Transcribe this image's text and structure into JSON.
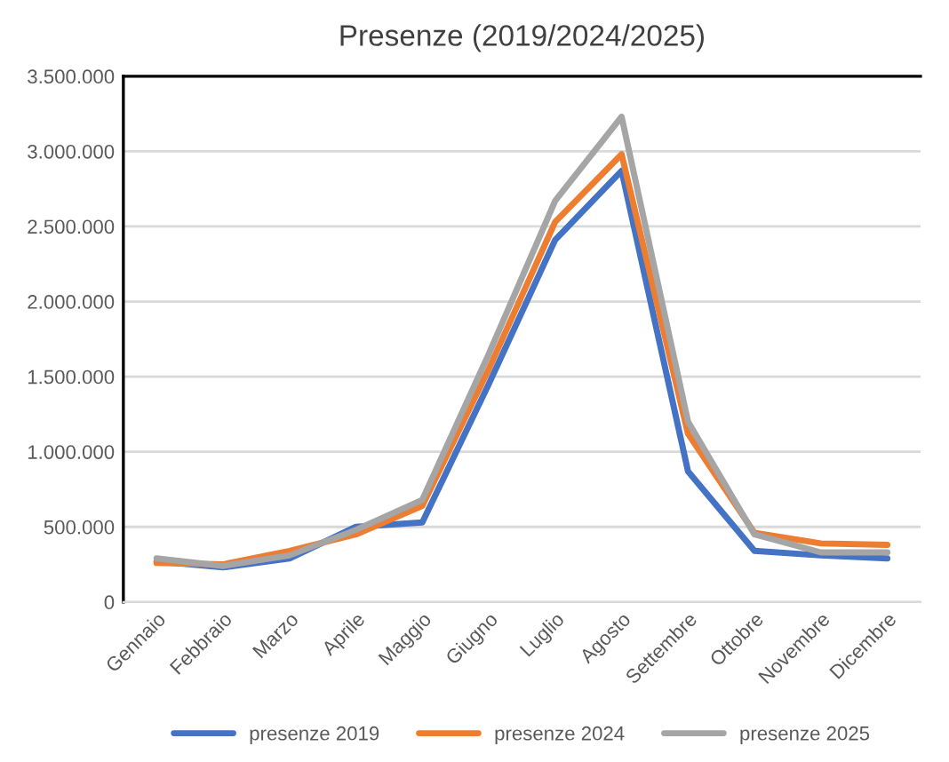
{
  "chart_data": {
    "type": "line",
    "title": "Presenze (2019/2024/2025)",
    "categories": [
      "Gennaio",
      "Febbraio",
      "Marzo",
      "Aprile",
      "Maggio",
      "Giugno",
      "Luglio",
      "Agosto",
      "Settembre",
      "Ottobre",
      "Novembre",
      "Dicembre"
    ],
    "series": [
      {
        "name": "presenze 2019",
        "color": "#4472c4",
        "values": [
          270000,
          230000,
          290000,
          500000,
          530000,
          1450000,
          2410000,
          2870000,
          870000,
          340000,
          310000,
          290000
        ]
      },
      {
        "name": "presenze 2024",
        "color": "#ed7d31",
        "values": [
          260000,
          250000,
          340000,
          450000,
          640000,
          1550000,
          2530000,
          2980000,
          1120000,
          460000,
          390000,
          380000
        ]
      },
      {
        "name": "presenze 2025",
        "color": "#a5a5a5",
        "values": [
          290000,
          240000,
          310000,
          480000,
          680000,
          1650000,
          2670000,
          3230000,
          1200000,
          450000,
          330000,
          330000
        ]
      }
    ],
    "ylim": [
      0,
      3500000
    ],
    "yticks": [
      0,
      {
        "value": 500000,
        "label": "500.000"
      },
      {
        "value": 1000000,
        "label": "1.000.000"
      },
      {
        "value": 1500000,
        "label": "1.500.000"
      },
      {
        "value": 2000000,
        "label": "2.000.000"
      },
      {
        "value": 2500000,
        "label": "2.500.000"
      },
      {
        "value": 3000000,
        "label": "3.000.000"
      },
      {
        "value": 3500000,
        "label": "3.500.000"
      }
    ],
    "grid": "y",
    "legend": "bottom",
    "marker": "none",
    "line_style": "solid"
  }
}
